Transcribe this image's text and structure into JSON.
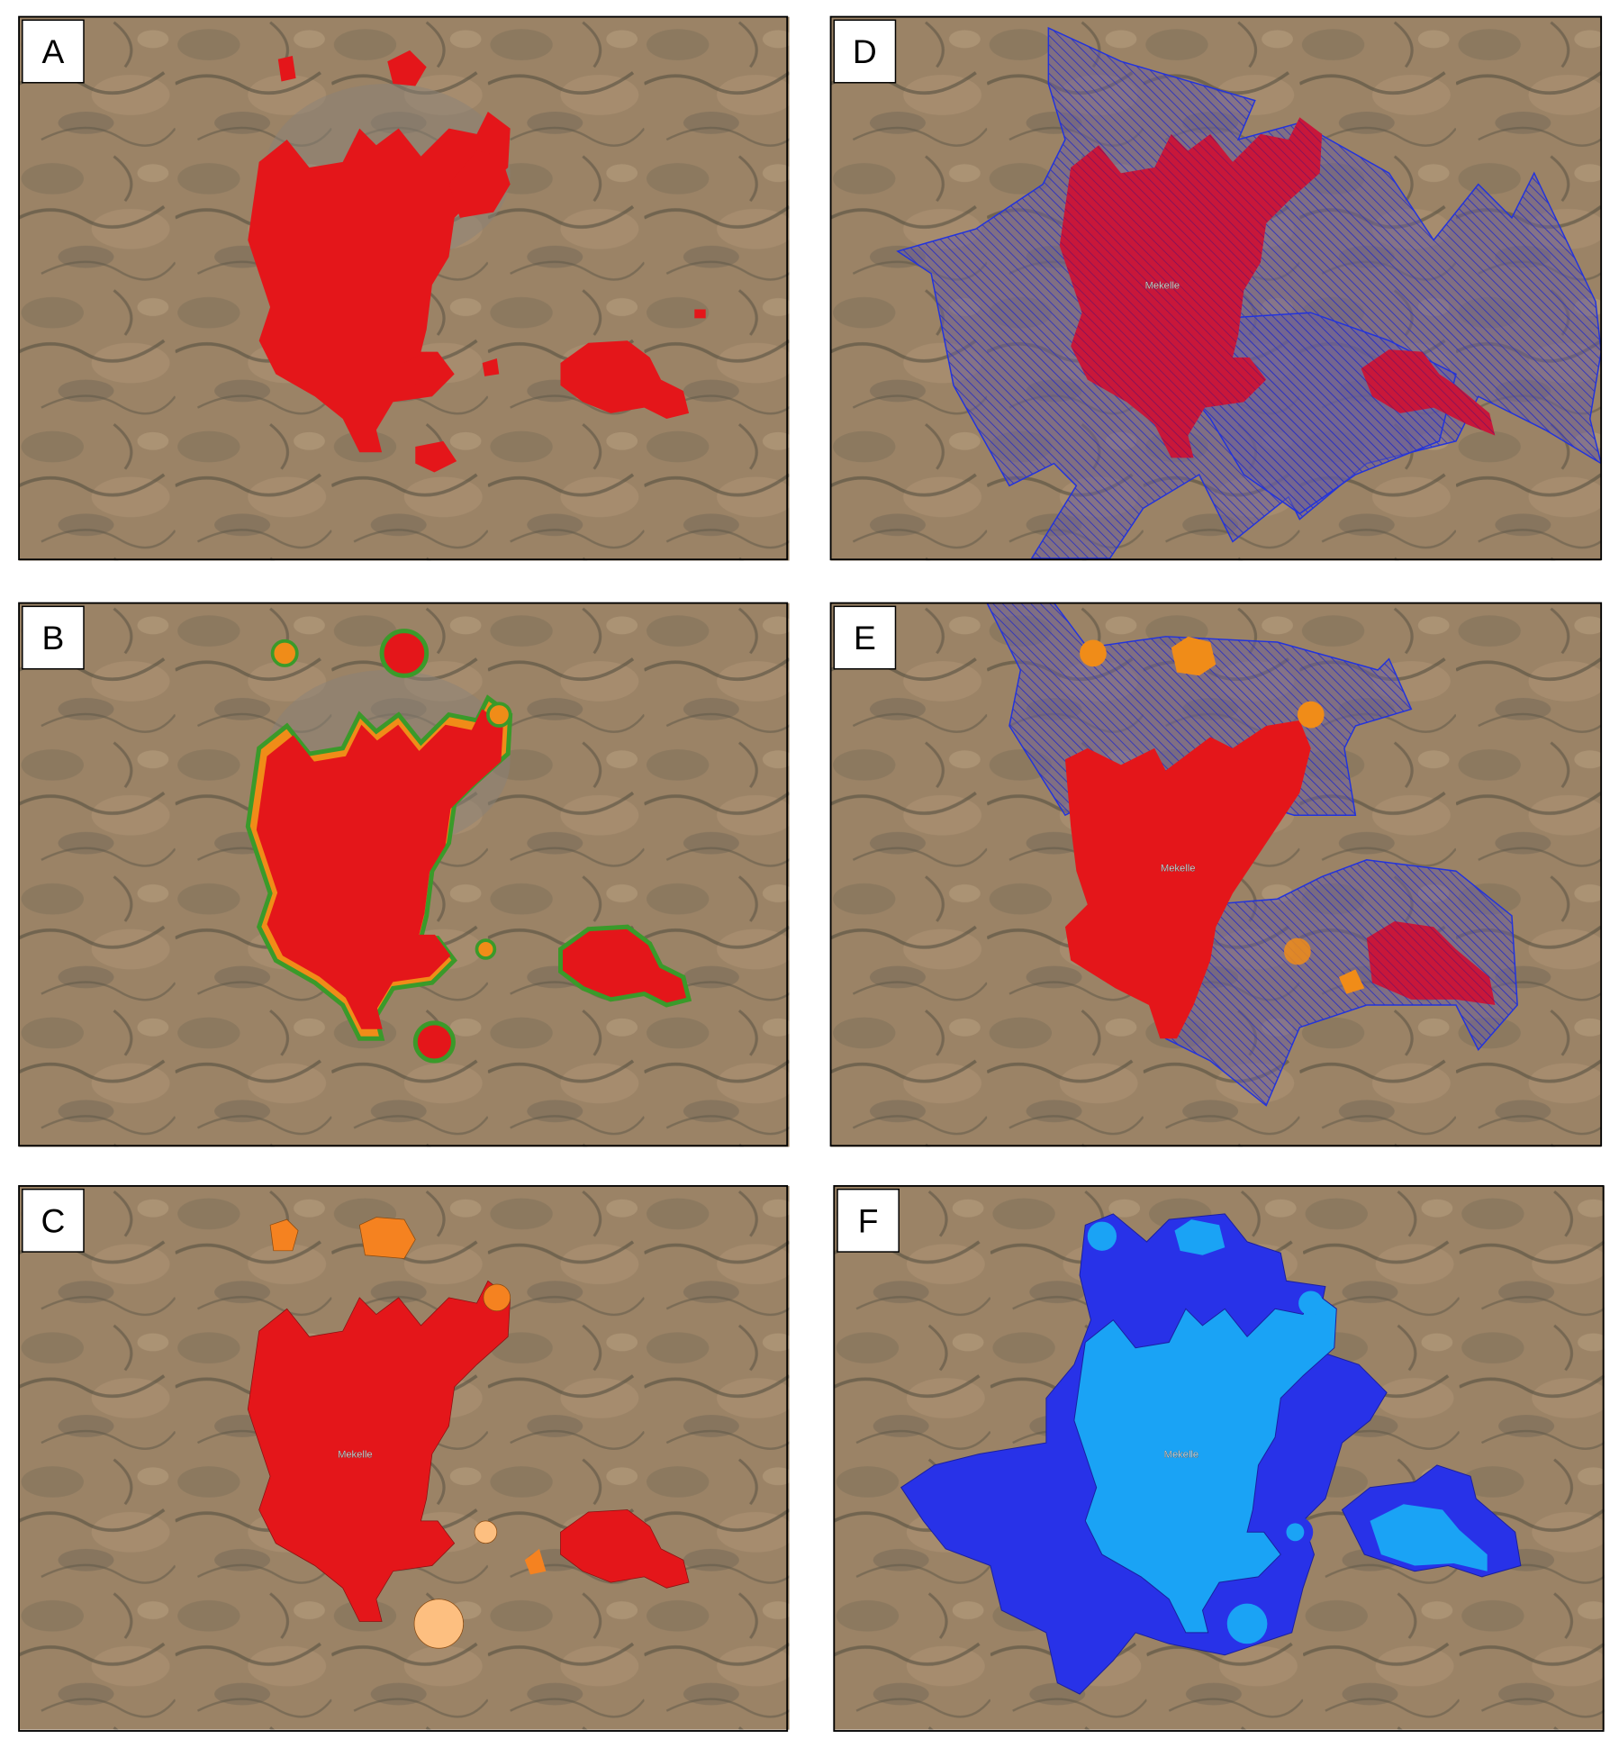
{
  "panels": [
    {
      "label": "A"
    },
    {
      "label": "B"
    },
    {
      "label": "C",
      "place": "Mekelle"
    },
    {
      "label": "D",
      "place": "Mekelle"
    },
    {
      "label": "E",
      "place": "Mekelle"
    },
    {
      "label": "F",
      "place": "Mekelle"
    }
  ]
}
